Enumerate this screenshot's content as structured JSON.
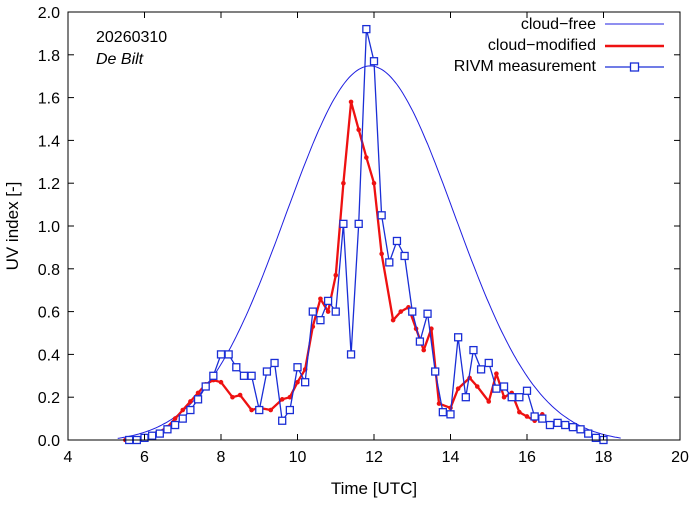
{
  "chart_data": {
    "type": "line",
    "title": "",
    "xlabel": "Time  [UTC]",
    "ylabel": "UV index  [-]",
    "xlim": [
      4,
      20
    ],
    "ylim": [
      0,
      2.0
    ],
    "xticks": [
      "4",
      "6",
      "8",
      "10",
      "12",
      "14",
      "16",
      "18",
      "20"
    ],
    "yticks": [
      "0.0",
      "0.2",
      "0.4",
      "0.6",
      "0.8",
      "1.0",
      "1.2",
      "1.4",
      "1.6",
      "1.8",
      "2.0"
    ],
    "annotations": {
      "date": "20260310",
      "location": "De Bilt"
    },
    "legend_position": "top-right",
    "colors": {
      "cloud_free": "#1f1fe0",
      "cloud_modified": "#ee1111",
      "rivm": "#1a2ed6"
    },
    "series": [
      {
        "name": "cloud−free",
        "style": "thin-line",
        "peak_time": 11.9,
        "peak_value": 1.76,
        "x": [
          5.5,
          6.0,
          6.5,
          7.0,
          7.5,
          8.0,
          8.5,
          9.0,
          9.5,
          10.0,
          10.5,
          11.0,
          11.5,
          11.9,
          12.0,
          12.5,
          13.0,
          13.5,
          14.0,
          14.5,
          15.0,
          15.5,
          16.0,
          16.5,
          17.0,
          17.5,
          18.0,
          18.3
        ],
        "values": [
          0.0,
          0.01,
          0.04,
          0.09,
          0.17,
          0.29,
          0.44,
          0.62,
          0.82,
          1.04,
          1.26,
          1.48,
          1.66,
          1.76,
          1.75,
          1.68,
          1.54,
          1.34,
          1.12,
          0.89,
          0.67,
          0.47,
          0.31,
          0.18,
          0.09,
          0.03,
          0.0,
          0.0
        ]
      },
      {
        "name": "cloud−modified",
        "style": "thick-line-dots",
        "x": [
          5.5,
          5.8,
          6.1,
          6.3,
          6.6,
          6.8,
          7.0,
          7.2,
          7.4,
          7.6,
          7.8,
          8.0,
          8.3,
          8.5,
          8.8,
          9.0,
          9.3,
          9.6,
          9.8,
          10.0,
          10.2,
          10.4,
          10.6,
          10.8,
          11.0,
          11.2,
          11.4,
          11.6,
          11.8,
          12.0,
          12.2,
          12.5,
          12.7,
          12.9,
          13.1,
          13.3,
          13.5,
          13.7,
          14.0,
          14.2,
          14.5,
          14.7,
          15.0,
          15.2,
          15.4,
          15.6,
          15.8,
          16.0,
          16.2,
          16.4
        ],
        "values": [
          0.0,
          0.0,
          0.01,
          0.03,
          0.06,
          0.1,
          0.14,
          0.18,
          0.22,
          0.26,
          0.28,
          0.27,
          0.2,
          0.21,
          0.14,
          0.15,
          0.14,
          0.19,
          0.2,
          0.27,
          0.33,
          0.53,
          0.66,
          0.6,
          0.77,
          1.2,
          1.58,
          1.45,
          1.32,
          1.2,
          0.87,
          0.56,
          0.6,
          0.62,
          0.52,
          0.42,
          0.52,
          0.17,
          0.15,
          0.24,
          0.29,
          0.25,
          0.18,
          0.31,
          0.2,
          0.22,
          0.13,
          0.11,
          0.09,
          0.12
        ]
      },
      {
        "name": "RIVM measurement",
        "style": "line-square-markers",
        "x": [
          5.6,
          5.8,
          6.0,
          6.2,
          6.4,
          6.6,
          6.8,
          7.0,
          7.2,
          7.4,
          7.6,
          7.8,
          8.0,
          8.2,
          8.4,
          8.6,
          8.8,
          9.0,
          9.2,
          9.4,
          9.6,
          9.8,
          10.0,
          10.2,
          10.4,
          10.6,
          10.8,
          11.0,
          11.2,
          11.4,
          11.6,
          11.8,
          12.0,
          12.2,
          12.4,
          12.6,
          12.8,
          13.0,
          13.2,
          13.4,
          13.6,
          13.8,
          14.0,
          14.2,
          14.4,
          14.6,
          14.8,
          15.0,
          15.2,
          15.4,
          15.6,
          15.8,
          16.0,
          16.2,
          16.4,
          16.6,
          16.8,
          17.0,
          17.2,
          17.4,
          17.6,
          17.8,
          18.0
        ],
        "values": [
          0.0,
          0.0,
          0.01,
          0.02,
          0.03,
          0.05,
          0.07,
          0.1,
          0.14,
          0.19,
          0.25,
          0.3,
          0.4,
          0.4,
          0.34,
          0.3,
          0.3,
          0.14,
          0.32,
          0.36,
          0.09,
          0.14,
          0.34,
          0.27,
          0.6,
          0.56,
          0.65,
          0.6,
          1.01,
          0.4,
          1.01,
          1.92,
          1.77,
          1.05,
          0.83,
          0.93,
          0.86,
          0.6,
          0.46,
          0.59,
          0.32,
          0.13,
          0.12,
          0.48,
          0.2,
          0.42,
          0.33,
          0.36,
          0.24,
          0.25,
          0.2,
          0.2,
          0.23,
          0.11,
          0.1,
          0.07,
          0.08,
          0.07,
          0.06,
          0.05,
          0.03,
          0.01,
          0.0
        ]
      }
    ]
  }
}
